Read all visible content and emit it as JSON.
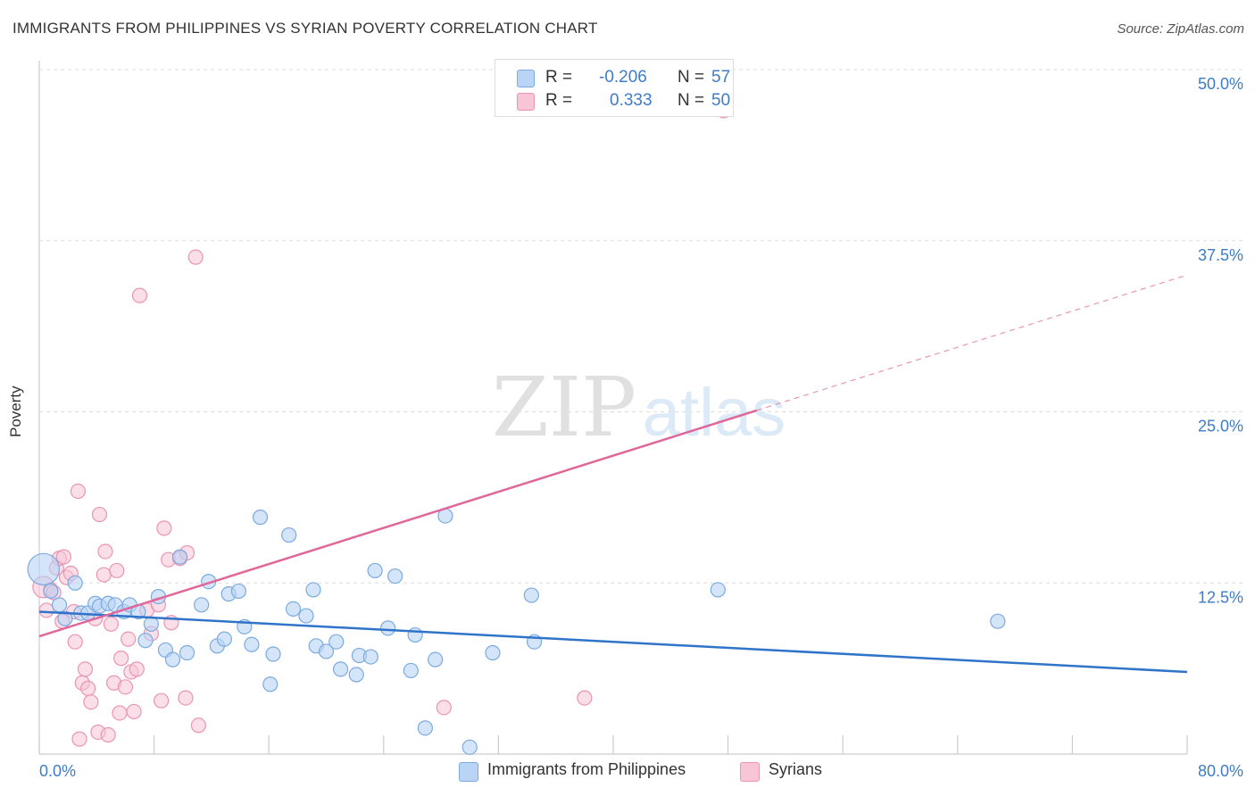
{
  "header": {
    "title": "IMMIGRANTS FROM PHILIPPINES VS SYRIAN POVERTY CORRELATION CHART",
    "source": "Source: ZipAtlas.com"
  },
  "legend_top": {
    "rows": [
      {
        "r_label": "R =",
        "r_value": "-0.206",
        "n_label": "N =",
        "n_value": "57"
      },
      {
        "r_label": "R =",
        "r_value": "0.333",
        "n_label": "N =",
        "n_value": "50"
      }
    ]
  },
  "legend_bottom": {
    "items": [
      {
        "label": "Immigrants from Philippines"
      },
      {
        "label": "Syrians"
      }
    ]
  },
  "colors": {
    "blue_fill": "#b9d4f5",
    "blue_stroke": "#7aaae0",
    "blue_line": "#2f74c8",
    "pink_fill": "#f7c5d5",
    "pink_stroke": "#eb94b2",
    "pink_line": "#e0679a",
    "tick_label": "#3d7cc9",
    "grid": "#dddddd"
  },
  "chart_data": {
    "type": "scatter",
    "title": "IMMIGRANTS FROM PHILIPPINES VS SYRIAN POVERTY CORRELATION CHART",
    "xlabel": "",
    "ylabel": "Poverty",
    "xlim": [
      0,
      80
    ],
    "ylim": [
      0,
      50
    ],
    "x_tick_labels": [
      "0.0%",
      "80.0%"
    ],
    "y_ticks": [
      12.5,
      25.0,
      37.5,
      50.0
    ],
    "y_tick_labels": [
      "12.5%",
      "25.0%",
      "37.5%",
      "50.0%"
    ],
    "grid": true,
    "legend_position": "top-center",
    "watermark": {
      "left": "ZIP",
      "right": "atlas"
    },
    "series": [
      {
        "name": "Immigrants from Philippines",
        "r": -0.206,
        "n": 57,
        "trendline": {
          "x": [
            0,
            80
          ],
          "y": [
            10.4,
            6.0
          ],
          "dashed_from": null
        },
        "points": [
          [
            0.3,
            13.5,
            2.2
          ],
          [
            0.8,
            11.9,
            1.0
          ],
          [
            1.4,
            10.9,
            1.0
          ],
          [
            1.8,
            9.9,
            1.0
          ],
          [
            2.5,
            12.5,
            1.0
          ],
          [
            2.9,
            10.3,
            1.0
          ],
          [
            3.4,
            10.3,
            1.0
          ],
          [
            3.9,
            11.0,
            1.0
          ],
          [
            4.2,
            10.8,
            1.0
          ],
          [
            4.8,
            11.0,
            1.0
          ],
          [
            5.3,
            10.9,
            1.0
          ],
          [
            5.9,
            10.4,
            1.0
          ],
          [
            6.3,
            10.9,
            1.0
          ],
          [
            6.9,
            10.4,
            1.0
          ],
          [
            7.4,
            8.3,
            1.0
          ],
          [
            7.8,
            9.5,
            1.0
          ],
          [
            8.3,
            11.5,
            1.0
          ],
          [
            8.8,
            7.6,
            1.0
          ],
          [
            9.3,
            6.9,
            1.0
          ],
          [
            9.8,
            14.4,
            1.0
          ],
          [
            10.3,
            7.4,
            1.0
          ],
          [
            11.3,
            10.9,
            1.0
          ],
          [
            11.8,
            12.6,
            1.0
          ],
          [
            12.4,
            7.9,
            1.0
          ],
          [
            12.9,
            8.4,
            1.0
          ],
          [
            13.2,
            11.7,
            1.0
          ],
          [
            13.9,
            11.9,
            1.0
          ],
          [
            14.3,
            9.3,
            1.0
          ],
          [
            14.8,
            8.0,
            1.0
          ],
          [
            15.4,
            17.3,
            1.0
          ],
          [
            16.1,
            5.1,
            1.0
          ],
          [
            16.3,
            7.3,
            1.0
          ],
          [
            17.4,
            16.0,
            1.0
          ],
          [
            17.7,
            10.6,
            1.0
          ],
          [
            18.6,
            10.1,
            1.0
          ],
          [
            19.1,
            12.0,
            1.0
          ],
          [
            19.3,
            7.9,
            1.0
          ],
          [
            20.0,
            7.5,
            1.0
          ],
          [
            20.7,
            8.2,
            1.0
          ],
          [
            21.0,
            6.2,
            1.0
          ],
          [
            22.1,
            5.8,
            1.0
          ],
          [
            22.3,
            7.2,
            1.0
          ],
          [
            23.1,
            7.1,
            1.0
          ],
          [
            23.4,
            13.4,
            1.0
          ],
          [
            24.3,
            9.2,
            1.0
          ],
          [
            24.8,
            13.0,
            1.0
          ],
          [
            25.9,
            6.1,
            1.0
          ],
          [
            26.2,
            8.7,
            1.0
          ],
          [
            26.9,
            1.9,
            1.0
          ],
          [
            27.6,
            6.9,
            1.0
          ],
          [
            28.3,
            17.4,
            1.0
          ],
          [
            30.0,
            0.5,
            1.0
          ],
          [
            31.6,
            7.4,
            1.0
          ],
          [
            34.3,
            11.6,
            1.0
          ],
          [
            34.5,
            8.2,
            1.0
          ],
          [
            47.3,
            12.0,
            1.0
          ],
          [
            66.8,
            9.7,
            1.0
          ]
        ]
      },
      {
        "name": "Syrians",
        "r": 0.333,
        "n": 50,
        "trendline": {
          "x": [
            0,
            50,
            80
          ],
          "y": [
            8.6,
            25.1,
            35.0
          ],
          "dashed_from": 50
        },
        "points": [
          [
            0.3,
            12.2,
            1.5
          ],
          [
            0.5,
            10.5,
            1.0
          ],
          [
            0.8,
            12.0,
            1.0
          ],
          [
            1.0,
            11.8,
            1.0
          ],
          [
            1.2,
            13.6,
            1.0
          ],
          [
            1.4,
            14.3,
            1.0
          ],
          [
            1.6,
            9.7,
            1.0
          ],
          [
            1.7,
            14.4,
            1.0
          ],
          [
            1.9,
            12.9,
            1.0
          ],
          [
            2.2,
            13.2,
            1.0
          ],
          [
            2.4,
            10.4,
            1.0
          ],
          [
            2.5,
            8.2,
            1.0
          ],
          [
            2.7,
            19.2,
            1.0
          ],
          [
            2.8,
            1.1,
            1.0
          ],
          [
            3.0,
            5.2,
            1.0
          ],
          [
            3.2,
            6.2,
            1.0
          ],
          [
            3.4,
            4.8,
            1.0
          ],
          [
            3.6,
            3.8,
            1.0
          ],
          [
            3.9,
            9.9,
            1.0
          ],
          [
            4.1,
            1.6,
            1.0
          ],
          [
            4.2,
            17.5,
            1.0
          ],
          [
            4.5,
            13.1,
            1.0
          ],
          [
            4.6,
            14.8,
            1.0
          ],
          [
            4.8,
            1.4,
            1.0
          ],
          [
            5.0,
            9.5,
            1.0
          ],
          [
            5.2,
            5.2,
            1.0
          ],
          [
            5.4,
            13.4,
            1.0
          ],
          [
            5.6,
            3.0,
            1.0
          ],
          [
            5.7,
            7.0,
            1.0
          ],
          [
            6.0,
            4.9,
            1.0
          ],
          [
            6.2,
            8.4,
            1.0
          ],
          [
            6.4,
            6.0,
            1.0
          ],
          [
            6.6,
            3.1,
            1.0
          ],
          [
            6.8,
            6.2,
            1.0
          ],
          [
            7.0,
            33.5,
            1.0
          ],
          [
            7.5,
            10.5,
            1.0
          ],
          [
            7.8,
            8.8,
            1.0
          ],
          [
            8.3,
            10.9,
            1.0
          ],
          [
            8.5,
            3.9,
            1.0
          ],
          [
            8.7,
            16.5,
            1.0
          ],
          [
            9.0,
            14.2,
            1.0
          ],
          [
            9.2,
            9.6,
            1.0
          ],
          [
            9.8,
            14.3,
            1.0
          ],
          [
            10.2,
            4.1,
            1.0
          ],
          [
            10.3,
            14.7,
            1.0
          ],
          [
            10.9,
            36.3,
            1.0
          ],
          [
            11.1,
            2.1,
            1.0
          ],
          [
            28.2,
            3.4,
            1.0
          ],
          [
            38.0,
            4.1,
            1.0
          ],
          [
            47.7,
            47.0,
            1.0
          ]
        ]
      }
    ]
  }
}
